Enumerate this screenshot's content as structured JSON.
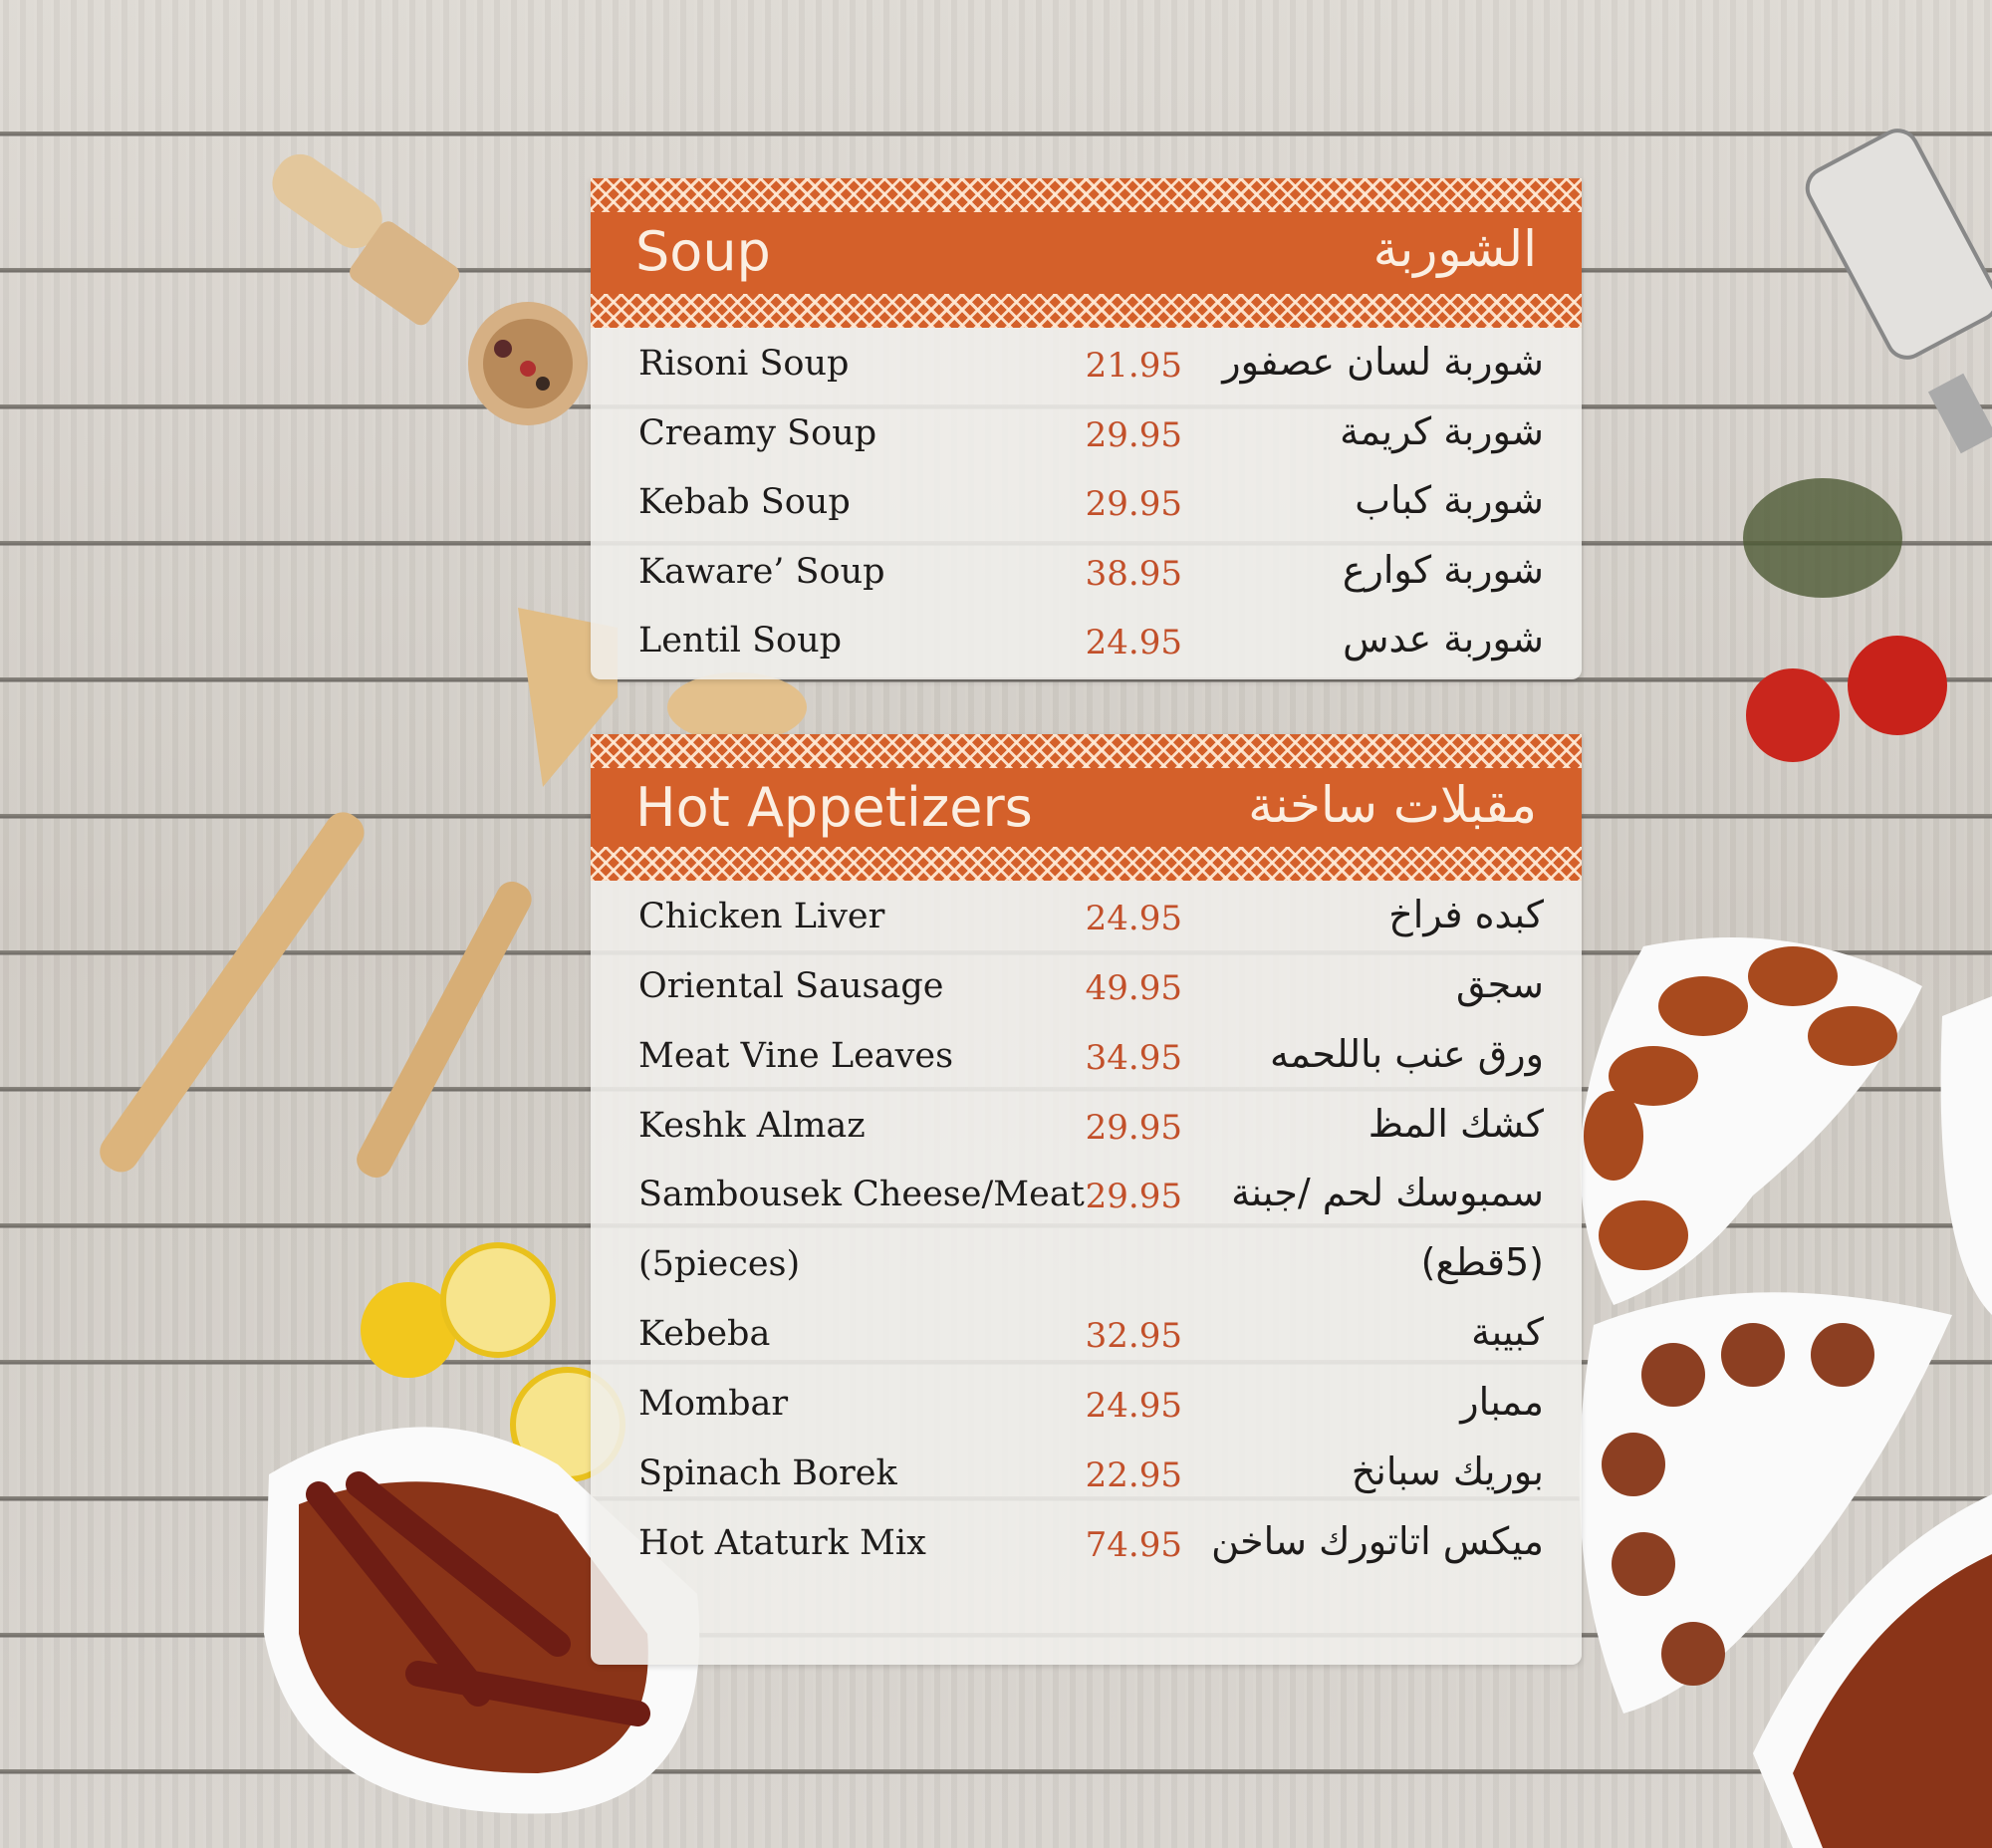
{
  "colors": {
    "header": "#d4602a",
    "price": "#c2502a",
    "text": "#1d1b1a"
  },
  "sections": [
    {
      "title_en": "Soup",
      "title_ar": "الشوربة",
      "items": [
        {
          "en": "Risoni Soup",
          "price": "21.95",
          "ar": "شوربة لسان عصفور"
        },
        {
          "en": "Creamy Soup",
          "price": "29.95",
          "ar": "شوربة كريمة"
        },
        {
          "en": "Kebab Soup",
          "price": "29.95",
          "ar": "شوربة كباب"
        },
        {
          "en": "Kaware’ Soup",
          "price": "38.95",
          "ar": "شوربة كوارع"
        },
        {
          "en": "Lentil Soup",
          "price": "24.95",
          "ar": "شوربة عدس"
        }
      ]
    },
    {
      "title_en": "Hot Appetizers",
      "title_ar": "مقبلات ساخنة",
      "items": [
        {
          "en": "Chicken Liver",
          "price": "24.95",
          "ar": "كبده فراخ"
        },
        {
          "en": "Oriental Sausage",
          "price": "49.95",
          "ar": "سجق"
        },
        {
          "en": "Meat Vine Leaves",
          "price": "34.95",
          "ar": "ورق عنب باللحمه"
        },
        {
          "en": "Keshk Almaz",
          "price": "29.95",
          "ar": "كشك المظ"
        },
        {
          "en": "Sambousek Cheese/Meat",
          "price": "29.95",
          "ar": "سمبوسك لحم /جبنة"
        },
        {
          "en": "(5pieces)",
          "price": "",
          "ar": "(5قطع)"
        },
        {
          "en": "Kebeba",
          "price": "32.95",
          "ar": "كبيبة"
        },
        {
          "en": "Mombar",
          "price": "24.95",
          "ar": "ممبار"
        },
        {
          "en": "Spinach Borek",
          "price": "22.95",
          "ar": "بوريك سبانخ"
        },
        {
          "en": "Hot Ataturk Mix",
          "price": "74.95",
          "ar": "ميكس اتاتورك ساخن"
        }
      ]
    }
  ]
}
